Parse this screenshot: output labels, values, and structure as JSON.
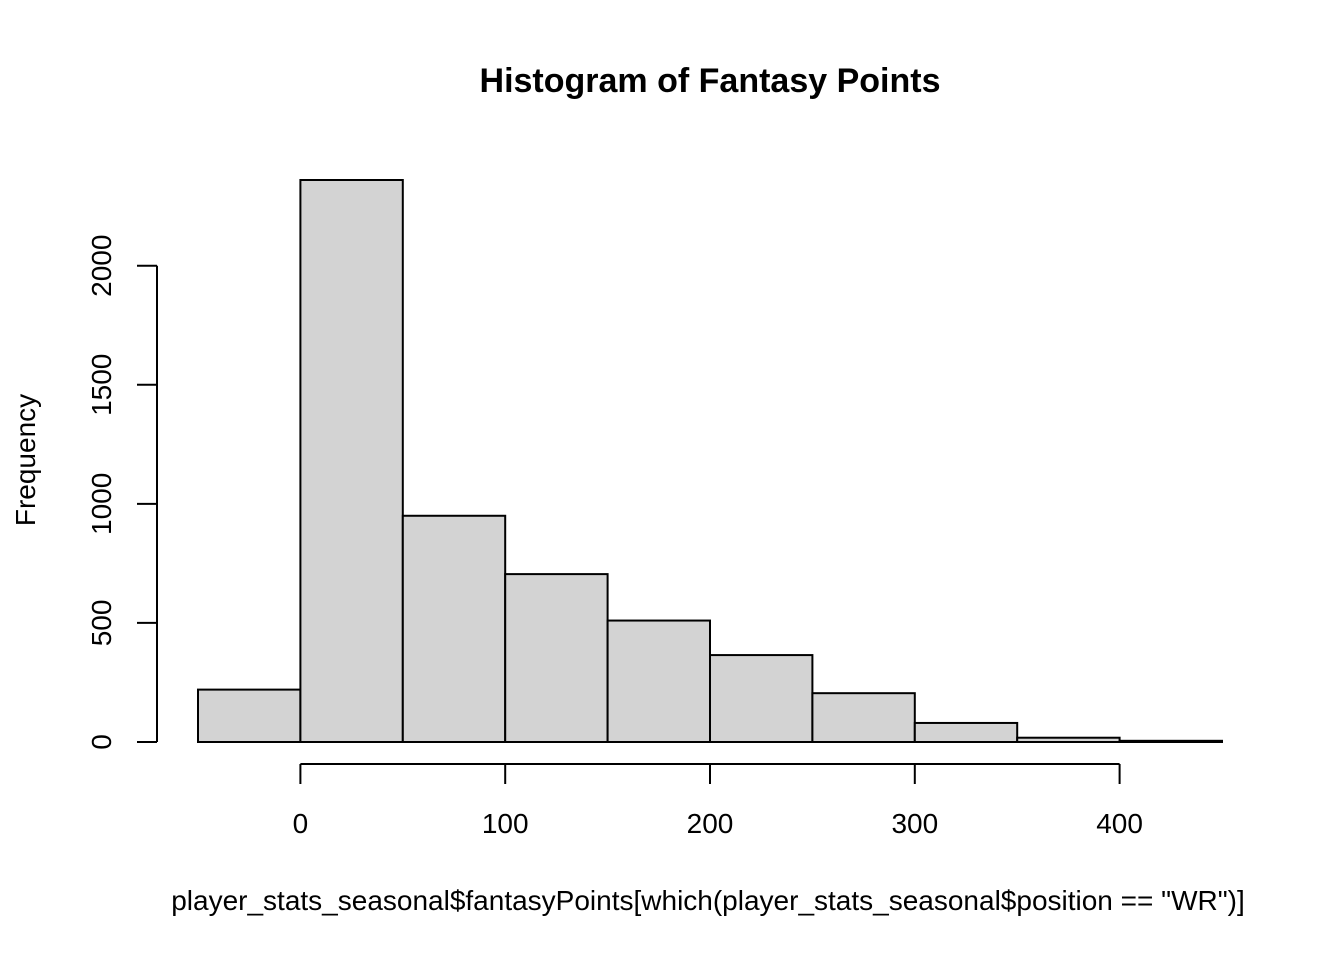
{
  "chart_data": {
    "type": "bar",
    "title": "Histogram of Fantasy Points",
    "xlabel": "player_stats_seasonal$fantasyPoints[which(player_stats_seasonal$position == \"WR\")]",
    "ylabel": "Frequency",
    "bin_edges": [
      -50,
      0,
      50,
      100,
      150,
      200,
      250,
      300,
      350,
      400,
      450
    ],
    "values": [
      220,
      2360,
      950,
      705,
      510,
      365,
      205,
      80,
      18,
      5
    ],
    "xlim": [
      -50,
      450
    ],
    "ylim": [
      0,
      2360
    ],
    "x_ticks": [
      0,
      100,
      200,
      300,
      400
    ],
    "y_ticks": [
      0,
      500,
      1000,
      1500,
      2000
    ],
    "x_tick_labels": [
      "0",
      "100",
      "200",
      "300",
      "400"
    ],
    "y_tick_labels": [
      "0",
      "500",
      "1000",
      "1500",
      "2000"
    ],
    "bar_color": "#d3d3d3",
    "grid": false,
    "legend": "none"
  }
}
